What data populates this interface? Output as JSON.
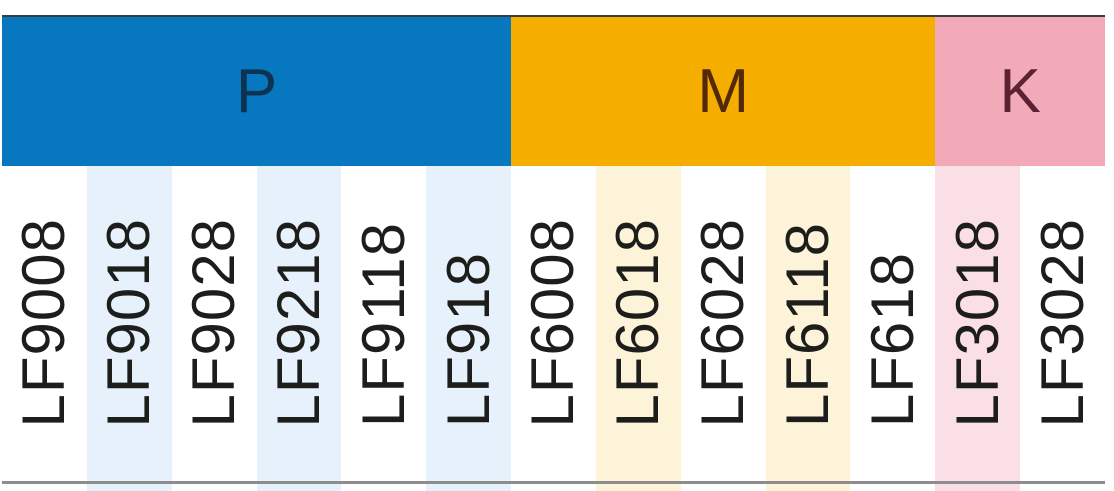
{
  "table": {
    "header": {
      "groups": [
        {
          "label": "P",
          "bg": "#0778c0",
          "fg": "#0d3352",
          "span": 6
        },
        {
          "label": "M",
          "bg": "#f5ae00",
          "fg": "#54290a",
          "span": 5
        },
        {
          "label": "K",
          "bg": "#f2aab9",
          "fg": "#5c2133",
          "span": 2
        }
      ]
    },
    "columns": [
      {
        "label": "LF9008",
        "group": "P",
        "tint": "#ffffff"
      },
      {
        "label": "LF9018",
        "group": "P",
        "tint": "#e6f1fb"
      },
      {
        "label": "LF9028",
        "group": "P",
        "tint": "#ffffff"
      },
      {
        "label": "LF9218",
        "group": "P",
        "tint": "#e6f1fb"
      },
      {
        "label": "LF9118",
        "group": "P",
        "tint": "#ffffff"
      },
      {
        "label": "LF918",
        "group": "P",
        "tint": "#e6f1fb"
      },
      {
        "label": "LF6008",
        "group": "M",
        "tint": "#ffffff"
      },
      {
        "label": "LF6018",
        "group": "M",
        "tint": "#fdf3d8"
      },
      {
        "label": "LF6028",
        "group": "M",
        "tint": "#ffffff"
      },
      {
        "label": "LF6118",
        "group": "M",
        "tint": "#fdf3d8"
      },
      {
        "label": "LF618",
        "group": "M",
        "tint": "#ffffff"
      },
      {
        "label": "LF3018",
        "group": "K",
        "tint": "#fbdfe6"
      },
      {
        "label": "LF3028",
        "group": "K",
        "tint": "#ffffff"
      }
    ],
    "colors": {
      "label_text": "#1d1d1b",
      "top_line": "#3c3c3c",
      "bottom_line": "#8d8d8d",
      "page_bg": "#ffffff"
    }
  }
}
